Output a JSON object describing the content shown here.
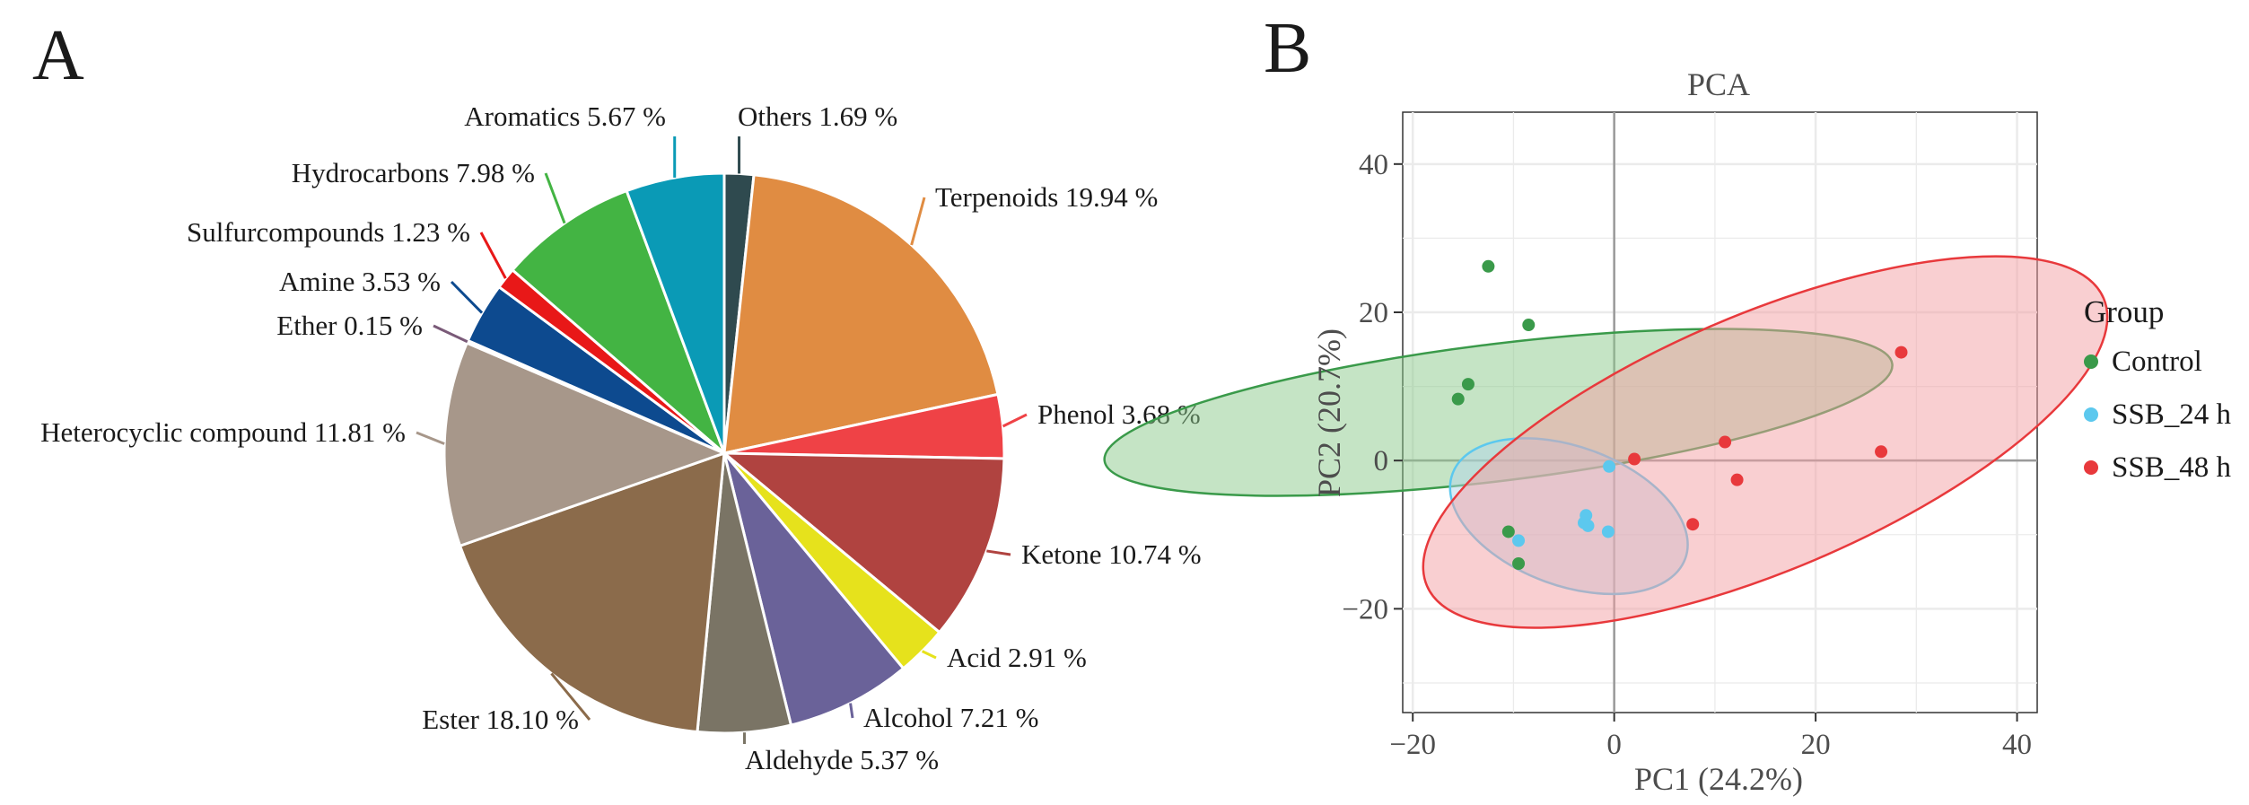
{
  "panel_a": {
    "letter": "A"
  },
  "panel_b": {
    "letter": "B"
  },
  "chart_data": [
    {
      "type": "pie",
      "title": "",
      "slices": [
        {
          "label": "Others 1.69 %",
          "category": "Others",
          "value": 1.69,
          "color": "#2f4a4f"
        },
        {
          "label": "Terpenoids 19.94 %",
          "category": "Terpenoids",
          "value": 19.94,
          "color": "#e08c42"
        },
        {
          "label": "Phenol 3.68 %",
          "category": "Phenol",
          "value": 3.68,
          "color": "#ef4246"
        },
        {
          "label": "Ketone 10.74 %",
          "category": "Ketone",
          "value": 10.74,
          "color": "#b04340"
        },
        {
          "label": "Acid 2.91 %",
          "category": "Acid",
          "value": 2.91,
          "color": "#e6e21c"
        },
        {
          "label": "Alcohol 7.21 %",
          "category": "Alcohol",
          "value": 7.21,
          "color": "#6a6299"
        },
        {
          "label": "Aldehyde 5.37 %",
          "category": "Aldehyde",
          "value": 5.37,
          "color": "#7a7465"
        },
        {
          "label": "Ester 18.10 %",
          "category": "Ester",
          "value": 18.1,
          "color": "#8b6b4b"
        },
        {
          "label": "Heterocyclic compound 11.81 %",
          "category": "Heterocyclic compound",
          "value": 11.81,
          "color": "#a7978a"
        },
        {
          "label": "Ether 0.15 %",
          "category": "Ether",
          "value": 0.15,
          "color": "#7a5a78"
        },
        {
          "label": "Amine 3.53 %",
          "category": "Amine",
          "value": 3.53,
          "color": "#0d4a8f"
        },
        {
          "label": "Sulfurcompounds 1.23 %",
          "category": "Sulfurcompounds",
          "value": 1.23,
          "color": "#e81818"
        },
        {
          "label": "Hydrocarbons 7.98 %",
          "category": "Hydrocarbons",
          "value": 7.98,
          "color": "#43b443"
        },
        {
          "label": "Aromatics 5.67 %",
          "category": "Aromatics",
          "value": 5.67,
          "color": "#0a9ab6"
        }
      ]
    },
    {
      "type": "scatter",
      "title": "PCA",
      "xlabel": "PC1 (24.2%)",
      "ylabel": "PC2 (20.7%)",
      "xlim": [
        -21,
        42
      ],
      "ylim": [
        -34,
        47
      ],
      "xticks": [
        -20,
        0,
        20,
        40
      ],
      "yticks": [
        -20,
        0,
        20,
        40
      ],
      "xtick_labels": [
        "−20",
        "0",
        "20",
        "40"
      ],
      "ytick_labels": [
        "−20",
        "0",
        "20",
        "40"
      ],
      "legend_title": "Group",
      "legend_position": "right",
      "series": [
        {
          "name": "Control",
          "color": "#3a9a4a",
          "ellipse_fill": "#8cc98c",
          "points": [
            [
              -12.5,
              26.2
            ],
            [
              -8.5,
              18.3
            ],
            [
              -14.5,
              10.3
            ],
            [
              -15.5,
              8.3
            ],
            [
              -10.5,
              -9.6
            ],
            [
              -9.5,
              -13.9
            ]
          ],
          "ellipse": {
            "cx": -11.5,
            "cy": 6.5,
            "rx": 6.8,
            "ry": 39.4,
            "angle": -83
          }
        },
        {
          "name": "SSB_24 h",
          "color": "#5cc8ee",
          "ellipse_fill": "#b4d6ea",
          "points": [
            [
              -0.5,
              -0.8
            ],
            [
              -2.8,
              -7.4
            ],
            [
              -3.0,
              -8.4
            ],
            [
              -2.6,
              -8.8
            ],
            [
              -0.6,
              -9.6
            ],
            [
              -9.5,
              -10.8
            ]
          ],
          "ellipse": {
            "cx": -4.5,
            "cy": -7.5,
            "rx": 12.3,
            "ry": 6.9,
            "angle": -20
          }
        },
        {
          "name": "SSB_48 h",
          "color": "#e8393c",
          "ellipse_fill": "#f4a0a4",
          "points": [
            [
              28.5,
              14.6
            ],
            [
              26.5,
              1.2
            ],
            [
              11.0,
              2.5
            ],
            [
              12.2,
              -2.6
            ],
            [
              2.0,
              0.2
            ],
            [
              7.8,
              -8.6
            ]
          ],
          "ellipse": {
            "cx": 15.0,
            "cy": 2.5,
            "rx": 36.5,
            "ry": 12.7,
            "angle": 23
          }
        }
      ]
    }
  ]
}
